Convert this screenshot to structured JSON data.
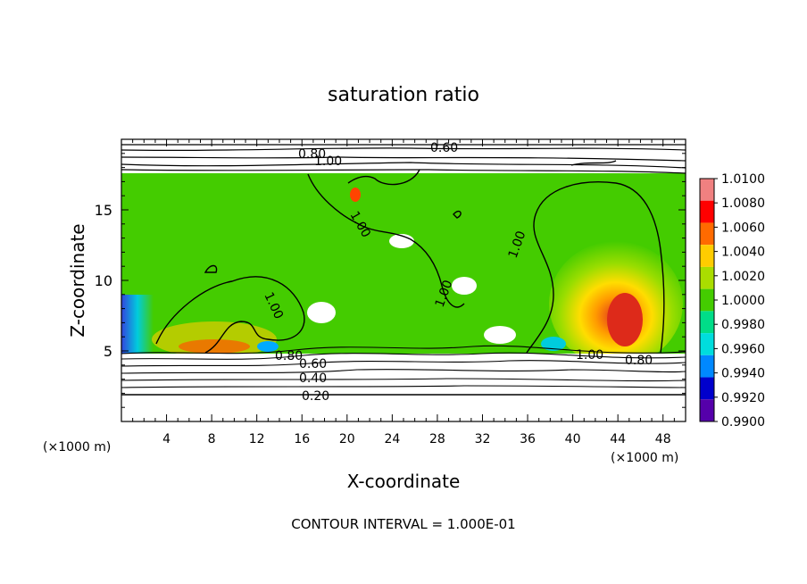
{
  "chart_data": {
    "type": "heatmap",
    "title": "saturation ratio",
    "xlabel": "X-coordinate",
    "ylabel": "Z-coordinate",
    "x_unit": "(×1000 m)",
    "z_unit": "(×1000 m)",
    "xlim": [
      0,
      50
    ],
    "ylim": [
      0,
      20
    ],
    "x_ticks": [
      "4",
      "8",
      "12",
      "16",
      "20",
      "24",
      "28",
      "32",
      "36",
      "40",
      "44",
      "48"
    ],
    "y_ticks": [
      "5",
      "10",
      "15"
    ],
    "footnote": "CONTOUR INTERVAL = 1.000E-01",
    "contour_labels": [
      "0.20",
      "0.40",
      "0.60",
      "0.80",
      "1.00",
      "0.60",
      "0.80",
      "1.00",
      "1.00",
      "1.00",
      "1.00",
      "1.00",
      "0.80"
    ],
    "colorbar": {
      "labels": [
        "1.0100",
        "1.0080",
        "1.0060",
        "1.0040",
        "1.0020",
        "1.0000",
        "0.9980",
        "0.9960",
        "0.9940",
        "0.9920",
        "0.9900"
      ],
      "colors": [
        "#f08080",
        "#ff0000",
        "#ff6a00",
        "#ffcc00",
        "#aadd00",
        "#44cc00",
        "#00dd88",
        "#00dddd",
        "#0088ff",
        "#0000cc",
        "#5500aa"
      ]
    }
  }
}
